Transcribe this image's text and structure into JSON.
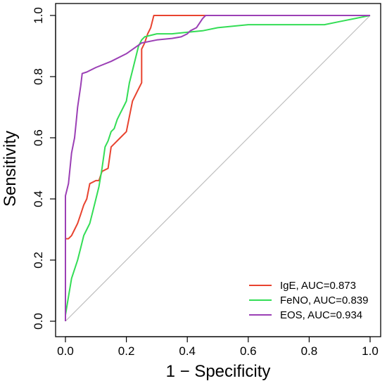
{
  "chart_data": {
    "type": "line",
    "title": "",
    "xlabel": "1 − Specificity",
    "ylabel": "Sensitivity",
    "xlim": [
      0,
      1
    ],
    "ylim": [
      0,
      1
    ],
    "x_ticks": [
      "0.0",
      "0.2",
      "0.4",
      "0.6",
      "0.8",
      "1.0"
    ],
    "y_ticks": [
      "0.0",
      "0.2",
      "0.4",
      "0.6",
      "0.8",
      "1.0"
    ],
    "grid": false,
    "legend_position": "bottom-right",
    "reference_line": {
      "from": [
        0,
        0
      ],
      "to": [
        1,
        1
      ],
      "color": "#bebebe"
    },
    "series": [
      {
        "name": "IgE, AUC=0.873",
        "color": "#e8432f",
        "points": [
          [
            0,
            0
          ],
          [
            0,
            0.27
          ],
          [
            0.01,
            0.27
          ],
          [
            0.02,
            0.28
          ],
          [
            0.03,
            0.3
          ],
          [
            0.04,
            0.32
          ],
          [
            0.05,
            0.35
          ],
          [
            0.06,
            0.38
          ],
          [
            0.07,
            0.4
          ],
          [
            0.08,
            0.45
          ],
          [
            0.1,
            0.46
          ],
          [
            0.11,
            0.46
          ],
          [
            0.12,
            0.49
          ],
          [
            0.14,
            0.5
          ],
          [
            0.15,
            0.57
          ],
          [
            0.16,
            0.58
          ],
          [
            0.18,
            0.6
          ],
          [
            0.2,
            0.62
          ],
          [
            0.22,
            0.72
          ],
          [
            0.24,
            0.76
          ],
          [
            0.25,
            0.78
          ],
          [
            0.25,
            0.89
          ],
          [
            0.26,
            0.91
          ],
          [
            0.27,
            0.94
          ],
          [
            0.28,
            0.96
          ],
          [
            0.29,
            1.0
          ],
          [
            1.0,
            1.0
          ]
        ]
      },
      {
        "name": "FeNO, AUC=0.839",
        "color": "#33dd55",
        "points": [
          [
            0,
            0
          ],
          [
            0,
            0.02
          ],
          [
            0.01,
            0.08
          ],
          [
            0.02,
            0.14
          ],
          [
            0.03,
            0.17
          ],
          [
            0.04,
            0.2
          ],
          [
            0.05,
            0.24
          ],
          [
            0.06,
            0.28
          ],
          [
            0.07,
            0.3
          ],
          [
            0.08,
            0.32
          ],
          [
            0.09,
            0.36
          ],
          [
            0.1,
            0.4
          ],
          [
            0.11,
            0.44
          ],
          [
            0.12,
            0.5
          ],
          [
            0.13,
            0.57
          ],
          [
            0.14,
            0.59
          ],
          [
            0.15,
            0.62
          ],
          [
            0.16,
            0.63
          ],
          [
            0.17,
            0.66
          ],
          [
            0.18,
            0.68
          ],
          [
            0.19,
            0.7
          ],
          [
            0.2,
            0.72
          ],
          [
            0.21,
            0.78
          ],
          [
            0.22,
            0.82
          ],
          [
            0.23,
            0.86
          ],
          [
            0.24,
            0.9
          ],
          [
            0.25,
            0.92
          ],
          [
            0.26,
            0.93
          ],
          [
            0.3,
            0.94
          ],
          [
            0.35,
            0.94
          ],
          [
            0.4,
            0.945
          ],
          [
            0.45,
            0.95
          ],
          [
            0.5,
            0.96
          ],
          [
            0.55,
            0.965
          ],
          [
            0.6,
            0.97
          ],
          [
            0.65,
            0.97
          ],
          [
            0.85,
            0.97
          ],
          [
            0.9,
            0.98
          ],
          [
            0.95,
            0.99
          ],
          [
            1.0,
            1.0
          ]
        ]
      },
      {
        "name": "EOS, AUC=0.934",
        "color": "#9b3fb5",
        "points": [
          [
            0,
            0
          ],
          [
            0,
            0.41
          ],
          [
            0.01,
            0.45
          ],
          [
            0.015,
            0.5
          ],
          [
            0.02,
            0.55
          ],
          [
            0.03,
            0.6
          ],
          [
            0.035,
            0.65
          ],
          [
            0.04,
            0.7
          ],
          [
            0.05,
            0.77
          ],
          [
            0.055,
            0.81
          ],
          [
            0.07,
            0.815
          ],
          [
            0.1,
            0.83
          ],
          [
            0.15,
            0.85
          ],
          [
            0.2,
            0.875
          ],
          [
            0.25,
            0.91
          ],
          [
            0.3,
            0.92
          ],
          [
            0.35,
            0.925
          ],
          [
            0.38,
            0.93
          ],
          [
            0.4,
            0.94
          ],
          [
            0.41,
            0.95
          ],
          [
            0.43,
            0.96
          ],
          [
            0.45,
            0.99
          ],
          [
            0.46,
            1.0
          ],
          [
            1.0,
            1.0
          ]
        ]
      }
    ]
  }
}
